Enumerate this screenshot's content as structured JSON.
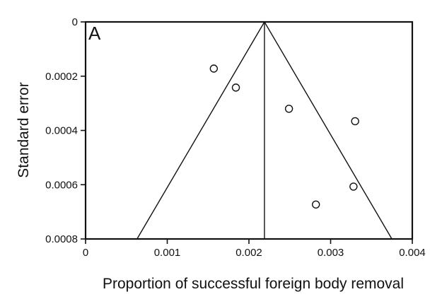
{
  "chart_data": {
    "type": "scatter",
    "panel_label": "A",
    "title": "",
    "xlabel": "Proportion of successful foreign body removal",
    "ylabel": "Standard error",
    "xlim": [
      0,
      0.004
    ],
    "ylim": [
      0,
      0.0008
    ],
    "y_inverted": true,
    "x_ticks": [
      0,
      0.001,
      0.002,
      0.003,
      0.004
    ],
    "x_tick_labels": [
      "0",
      "0.001",
      "0.002",
      "0.003",
      "0.004"
    ],
    "y_ticks": [
      0,
      0.0002,
      0.0004,
      0.0006,
      0.0008
    ],
    "y_tick_labels": [
      "0",
      "0.0002",
      "0.0004",
      "0.0006",
      "0.0008"
    ],
    "grid": false,
    "legend": "none",
    "points": [
      {
        "x": 0.00157,
        "y": 0.000172
      },
      {
        "x": 0.00184,
        "y": 0.000242
      },
      {
        "x": 0.00249,
        "y": 0.00032
      },
      {
        "x": 0.0033,
        "y": 0.000366
      },
      {
        "x": 0.00328,
        "y": 0.000607
      },
      {
        "x": 0.00282,
        "y": 0.000673
      }
    ],
    "pooled_estimate": 0.00219,
    "funnel": {
      "apex": {
        "x": 0.00219,
        "y": 0
      },
      "left_base": {
        "x": 0.00063,
        "y": 0.0008
      },
      "right_base": {
        "x": 0.00375,
        "y": 0.0008
      }
    },
    "colors": {
      "line": "#111111",
      "marker_fill": "#ffffff",
      "marker_stroke": "#111111"
    }
  }
}
